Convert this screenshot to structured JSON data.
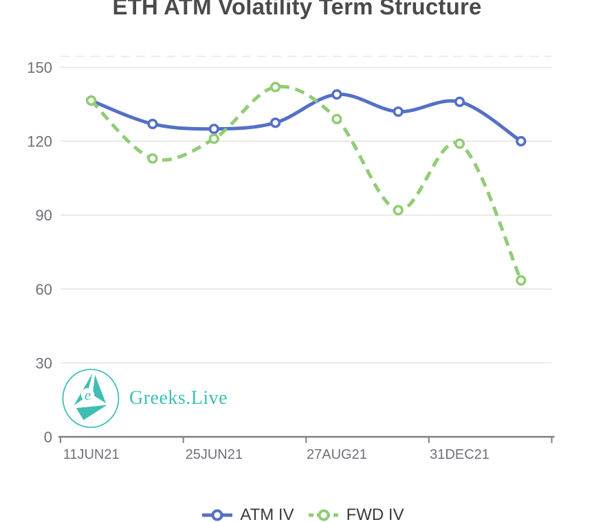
{
  "title": "ETH ATM Volatility Term Structure",
  "watermark": {
    "brand": "Greeks.Live"
  },
  "colors": {
    "atm_iv": "#5470C6",
    "fwd_iv": "#91CC75",
    "brand_teal": "#3EBFB2",
    "grid_line": "#E5E5E5",
    "axis_line": "#7F7F7F",
    "axis_text": "#6E7079",
    "title_text": "#4A4A4A",
    "legend_text": "#3A3A3A"
  },
  "legend": {
    "items": [
      {
        "label": "ATM IV",
        "marker": "solid-line-empty-circle"
      },
      {
        "label": "FWD IV",
        "marker": "dashed-line-empty-circle"
      }
    ]
  },
  "chart_data": {
    "type": "line",
    "title": "ETH ATM Volatility Term Structure",
    "categories": [
      "11JUN21",
      "",
      "25JUN21",
      "",
      "27AUG21",
      "",
      "31DEC21",
      ""
    ],
    "visible_x_tick_labels": [
      "11JUN21",
      "25JUN21",
      "27AUG21",
      "31DEC21"
    ],
    "series": [
      {
        "name": "ATM IV",
        "color": "#5470C6",
        "line_style": "solid",
        "marker": "empty-circle",
        "values": [
          136.5,
          127,
          125,
          127.5,
          139,
          132,
          136,
          120
        ]
      },
      {
        "name": "FWD IV",
        "color": "#91CC75",
        "line_style": "dashed",
        "marker": "empty-circle",
        "values": [
          136.5,
          113,
          121,
          142,
          129,
          92,
          119,
          63.5
        ]
      }
    ],
    "xlabel": "",
    "ylabel": "",
    "y_ticks": [
      0,
      30,
      60,
      90,
      120,
      150
    ],
    "ylim": [
      0,
      155
    ],
    "grid": true,
    "smooth": true,
    "legend_position": "bottom"
  }
}
